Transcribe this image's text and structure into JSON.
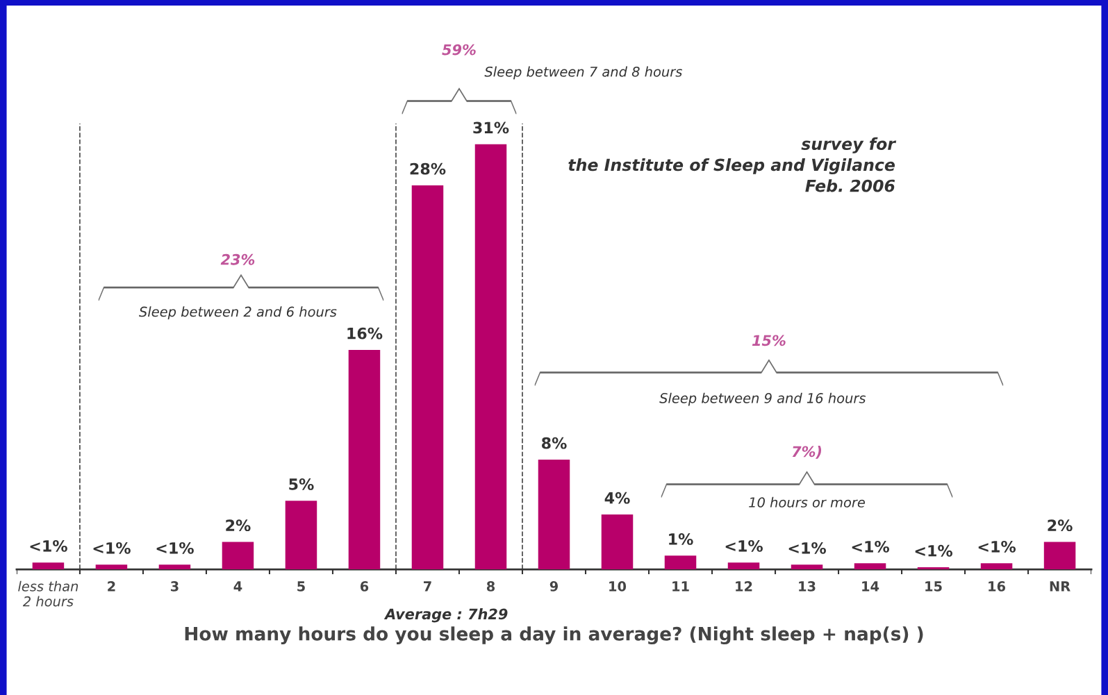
{
  "chart_data": {
    "type": "bar",
    "xlabel": "How many hours do you sleep a day in average? (Night sleep + nap(s) )",
    "categories": [
      "less than\n2 hours",
      "2",
      "3",
      "4",
      "5",
      "6",
      "7",
      "8",
      "9",
      "10",
      "11",
      "12",
      "13",
      "14",
      "15",
      "16",
      "NR"
    ],
    "values": [
      0.5,
      0.35,
      0.35,
      2,
      5,
      16,
      28,
      31,
      8,
      4,
      1,
      0.5,
      0.35,
      0.45,
      0.15,
      0.45,
      2
    ],
    "value_labels": [
      "<1%",
      "<1%",
      "<1%",
      "2%",
      "5%",
      "16%",
      "28%",
      "31%",
      "8%",
      "4%",
      "1%",
      "<1%",
      "<1%",
      "<1%",
      "<1%",
      "<1%",
      "2%"
    ],
    "color": "#b8006a",
    "annotations": [
      "59%",
      "Sleep between 7 and 8 hours",
      "23%",
      "Sleep between 2 and 6 hours",
      "15%",
      "Sleep between 9 and 16 hours",
      "7%)",
      "10 hours or more",
      "Average : 7h29",
      "survey for\nthe Institute of Sleep and Vigilance\nFeb. 2006"
    ],
    "grid": false
  }
}
